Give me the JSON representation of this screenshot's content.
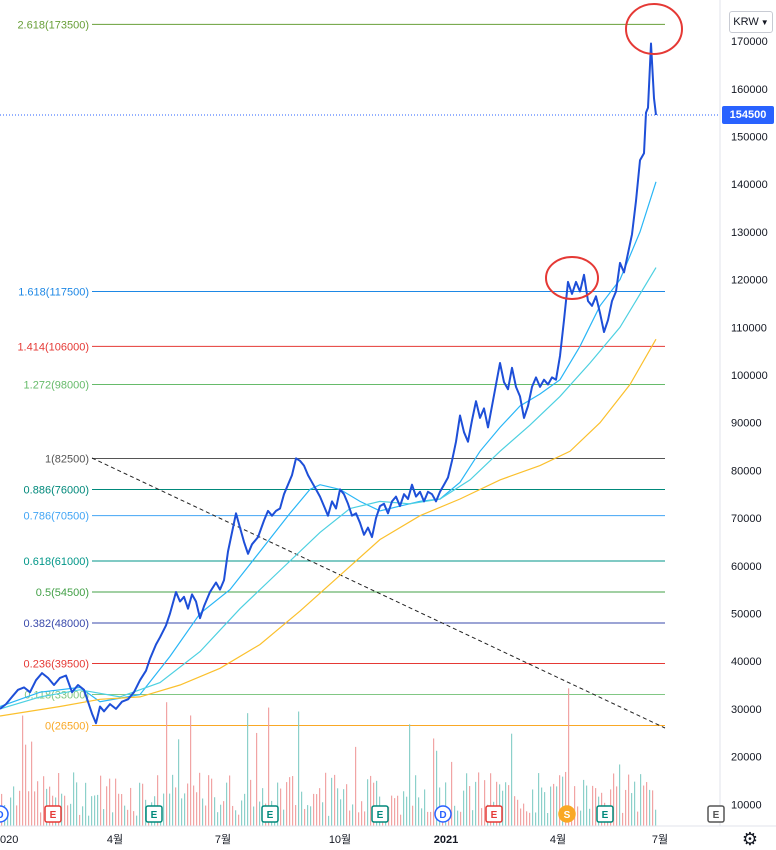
{
  "currency": {
    "label": "KRW",
    "icon": "chevron-down-icon"
  },
  "last_price_label": "154500",
  "settings_icon": "gear-icon",
  "chart_data": {
    "type": "line",
    "x_tick_labels": [
      "020",
      "4월",
      "7월",
      "10월",
      "2021",
      "4월",
      "7월"
    ],
    "y_ticks": [
      10000,
      20000,
      30000,
      40000,
      50000,
      60000,
      70000,
      80000,
      90000,
      100000,
      110000,
      120000,
      130000,
      140000,
      150000,
      160000,
      170000
    ],
    "ylim": [
      5000,
      178000
    ],
    "last_price": 154500,
    "fib_levels": [
      {
        "label": "2.618(173500)",
        "value": 173500,
        "color": "#689f38"
      },
      {
        "label": "1.618(117500)",
        "value": 117500,
        "color": "#1e88e5"
      },
      {
        "label": "1.414(106000)",
        "value": 106000,
        "color": "#e53935"
      },
      {
        "label": "1.272(98000)",
        "value": 98000,
        "color": "#66bb6a"
      },
      {
        "label": "1(82500)",
        "value": 82500,
        "color": "#555555"
      },
      {
        "label": "0.886(76000)",
        "value": 76000,
        "color": "#00897b"
      },
      {
        "label": "0.786(70500)",
        "value": 70500,
        "color": "#42a5f5"
      },
      {
        "label": "0.618(61000)",
        "value": 61000,
        "color": "#009688"
      },
      {
        "label": "0.5(54500)",
        "value": 54500,
        "color": "#43a047"
      },
      {
        "label": "0.382(48000)",
        "value": 48000,
        "color": "#3949ab"
      },
      {
        "label": "0.236(39500)",
        "value": 39500,
        "color": "#e53935"
      },
      {
        "label": "0.118(33000)",
        "value": 33000,
        "color": "#81c784"
      },
      {
        "label": "0(26500)",
        "value": 26500,
        "color": "#f9a825"
      }
    ],
    "series": [
      {
        "color": "#1e4fd8",
        "points": [
          [
            0,
            30000
          ],
          [
            6,
            31000
          ],
          [
            12,
            32500
          ],
          [
            18,
            34000
          ],
          [
            24,
            34500
          ],
          [
            30,
            33500
          ],
          [
            36,
            36000
          ],
          [
            42,
            37500
          ],
          [
            48,
            36500
          ],
          [
            54,
            35000
          ],
          [
            60,
            36500
          ],
          [
            66,
            37000
          ],
          [
            72,
            33500
          ],
          [
            78,
            35000
          ],
          [
            84,
            34000
          ],
          [
            88,
            31500
          ],
          [
            92,
            29000
          ],
          [
            96,
            27000
          ],
          [
            100,
            30500
          ],
          [
            104,
            29500
          ],
          [
            110,
            31000
          ],
          [
            116,
            30000
          ],
          [
            122,
            31500
          ],
          [
            128,
            32000
          ],
          [
            134,
            33500
          ],
          [
            140,
            36000
          ],
          [
            146,
            38000
          ],
          [
            150,
            40500
          ],
          [
            156,
            43500
          ],
          [
            160,
            45000
          ],
          [
            166,
            47500
          ],
          [
            170,
            50000
          ],
          [
            176,
            54500
          ],
          [
            180,
            52500
          ],
          [
            184,
            53500
          ],
          [
            188,
            51000
          ],
          [
            192,
            54000
          ],
          [
            196,
            52500
          ],
          [
            200,
            49000
          ],
          [
            204,
            51500
          ],
          [
            210,
            54500
          ],
          [
            216,
            56500
          ],
          [
            220,
            55000
          ],
          [
            224,
            57000
          ],
          [
            228,
            63000
          ],
          [
            232,
            67000
          ],
          [
            236,
            71000
          ],
          [
            240,
            68000
          ],
          [
            244,
            65000
          ],
          [
            248,
            62500
          ],
          [
            252,
            64500
          ],
          [
            258,
            66000
          ],
          [
            264,
            69500
          ],
          [
            268,
            71500
          ],
          [
            272,
            70500
          ],
          [
            276,
            71500
          ],
          [
            280,
            72000
          ],
          [
            284,
            75000
          ],
          [
            288,
            77000
          ],
          [
            292,
            79000
          ],
          [
            296,
            82500
          ],
          [
            300,
            82000
          ],
          [
            304,
            81000
          ],
          [
            308,
            79000
          ],
          [
            312,
            77500
          ],
          [
            316,
            76000
          ],
          [
            320,
            74500
          ],
          [
            324,
            72500
          ],
          [
            328,
            70500
          ],
          [
            332,
            73500
          ],
          [
            336,
            72000
          ],
          [
            340,
            76000
          ],
          [
            344,
            75000
          ],
          [
            348,
            73000
          ],
          [
            352,
            70500
          ],
          [
            356,
            71000
          ],
          [
            360,
            69000
          ],
          [
            364,
            66500
          ],
          [
            368,
            68000
          ],
          [
            372,
            66000
          ],
          [
            376,
            70000
          ],
          [
            380,
            72500
          ],
          [
            384,
            73000
          ],
          [
            388,
            71000
          ],
          [
            392,
            73500
          ],
          [
            396,
            74500
          ],
          [
            400,
            72500
          ],
          [
            404,
            75000
          ],
          [
            408,
            74000
          ],
          [
            412,
            77000
          ],
          [
            416,
            74500
          ],
          [
            420,
            75500
          ],
          [
            424,
            73500
          ],
          [
            428,
            75500
          ],
          [
            432,
            75000
          ],
          [
            436,
            73500
          ],
          [
            440,
            75500
          ],
          [
            444,
            77000
          ],
          [
            448,
            78500
          ],
          [
            452,
            82000
          ],
          [
            456,
            86000
          ],
          [
            460,
            91500
          ],
          [
            464,
            88000
          ],
          [
            468,
            86000
          ],
          [
            472,
            90500
          ],
          [
            476,
            94500
          ],
          [
            480,
            91000
          ],
          [
            484,
            93000
          ],
          [
            488,
            89000
          ],
          [
            492,
            93500
          ],
          [
            496,
            98000
          ],
          [
            500,
            102500
          ],
          [
            504,
            98500
          ],
          [
            508,
            97000
          ],
          [
            512,
            101500
          ],
          [
            516,
            97500
          ],
          [
            520,
            95500
          ],
          [
            524,
            91000
          ],
          [
            528,
            93500
          ],
          [
            532,
            97500
          ],
          [
            536,
            99500
          ],
          [
            540,
            97500
          ],
          [
            544,
            99000
          ],
          [
            548,
            98000
          ],
          [
            552,
            99500
          ],
          [
            556,
            99000
          ],
          [
            560,
            104000
          ],
          [
            564,
            111500
          ],
          [
            568,
            119500
          ],
          [
            572,
            117000
          ],
          [
            576,
            119500
          ],
          [
            580,
            117500
          ],
          [
            584,
            121000
          ],
          [
            588,
            115500
          ],
          [
            592,
            114500
          ],
          [
            596,
            116500
          ],
          [
            600,
            113000
          ],
          [
            604,
            109000
          ],
          [
            608,
            111500
          ],
          [
            612,
            115500
          ],
          [
            616,
            117500
          ],
          [
            620,
            123500
          ],
          [
            624,
            121500
          ],
          [
            628,
            125500
          ],
          [
            632,
            129500
          ],
          [
            636,
            136500
          ],
          [
            640,
            145000
          ],
          [
            644,
            146500
          ],
          [
            646,
            155000
          ],
          [
            648,
            156000
          ],
          [
            651,
            169500
          ],
          [
            654,
            158000
          ],
          [
            656,
            154500
          ]
        ]
      },
      {
        "color": "#29b6f6",
        "points": [
          [
            0,
            30500
          ],
          [
            40,
            33500
          ],
          [
            80,
            34500
          ],
          [
            100,
            31500
          ],
          [
            140,
            33000
          ],
          [
            170,
            41000
          ],
          [
            200,
            50000
          ],
          [
            230,
            55000
          ],
          [
            260,
            63000
          ],
          [
            290,
            71000
          ],
          [
            310,
            76000
          ],
          [
            320,
            77000
          ],
          [
            340,
            76000
          ],
          [
            360,
            73500
          ],
          [
            380,
            71500
          ],
          [
            400,
            72500
          ],
          [
            420,
            73500
          ],
          [
            440,
            74000
          ],
          [
            460,
            77500
          ],
          [
            480,
            84000
          ],
          [
            500,
            89000
          ],
          [
            520,
            93500
          ],
          [
            540,
            96000
          ],
          [
            560,
            99000
          ],
          [
            580,
            106000
          ],
          [
            600,
            114500
          ],
          [
            620,
            120000
          ],
          [
            640,
            130000
          ],
          [
            656,
            140500
          ]
        ]
      },
      {
        "color": "#4dd0e1",
        "points": [
          [
            0,
            30000
          ],
          [
            40,
            32500
          ],
          [
            80,
            34000
          ],
          [
            120,
            32500
          ],
          [
            160,
            35500
          ],
          [
            200,
            42000
          ],
          [
            240,
            51000
          ],
          [
            280,
            59000
          ],
          [
            320,
            67000
          ],
          [
            350,
            72000
          ],
          [
            380,
            73500
          ],
          [
            410,
            73000
          ],
          [
            440,
            74000
          ],
          [
            470,
            78000
          ],
          [
            500,
            84000
          ],
          [
            530,
            89500
          ],
          [
            560,
            95500
          ],
          [
            590,
            102500
          ],
          [
            620,
            110000
          ],
          [
            656,
            122500
          ]
        ]
      },
      {
        "color": "#fbc02d",
        "points": [
          [
            0,
            28500
          ],
          [
            60,
            30500
          ],
          [
            100,
            32000
          ],
          [
            140,
            32500
          ],
          [
            180,
            35000
          ],
          [
            220,
            38500
          ],
          [
            260,
            43500
          ],
          [
            300,
            50500
          ],
          [
            340,
            58000
          ],
          [
            380,
            65500
          ],
          [
            420,
            70500
          ],
          [
            460,
            74000
          ],
          [
            500,
            78000
          ],
          [
            540,
            81000
          ],
          [
            570,
            84000
          ],
          [
            600,
            90000
          ],
          [
            630,
            98000
          ],
          [
            656,
            107500
          ]
        ]
      }
    ],
    "volume_markers": [
      {
        "letter": "D",
        "color": "#2962ff",
        "x": 0
      },
      {
        "letter": "E",
        "color": "#e53935",
        "x": 53
      },
      {
        "letter": "E",
        "color": "#00897b",
        "x": 154
      },
      {
        "letter": "E",
        "color": "#00897b",
        "x": 270
      },
      {
        "letter": "E",
        "color": "#00897b",
        "x": 380
      },
      {
        "letter": "D",
        "color": "#2962ff",
        "x": 443
      },
      {
        "letter": "E",
        "color": "#e53935",
        "x": 494
      },
      {
        "letter": "S",
        "color": "#f9a825",
        "x": 567
      },
      {
        "letter": "E",
        "color": "#00897b",
        "x": 605
      },
      {
        "letter": "E",
        "color": "#555555",
        "x": 716
      }
    ]
  }
}
